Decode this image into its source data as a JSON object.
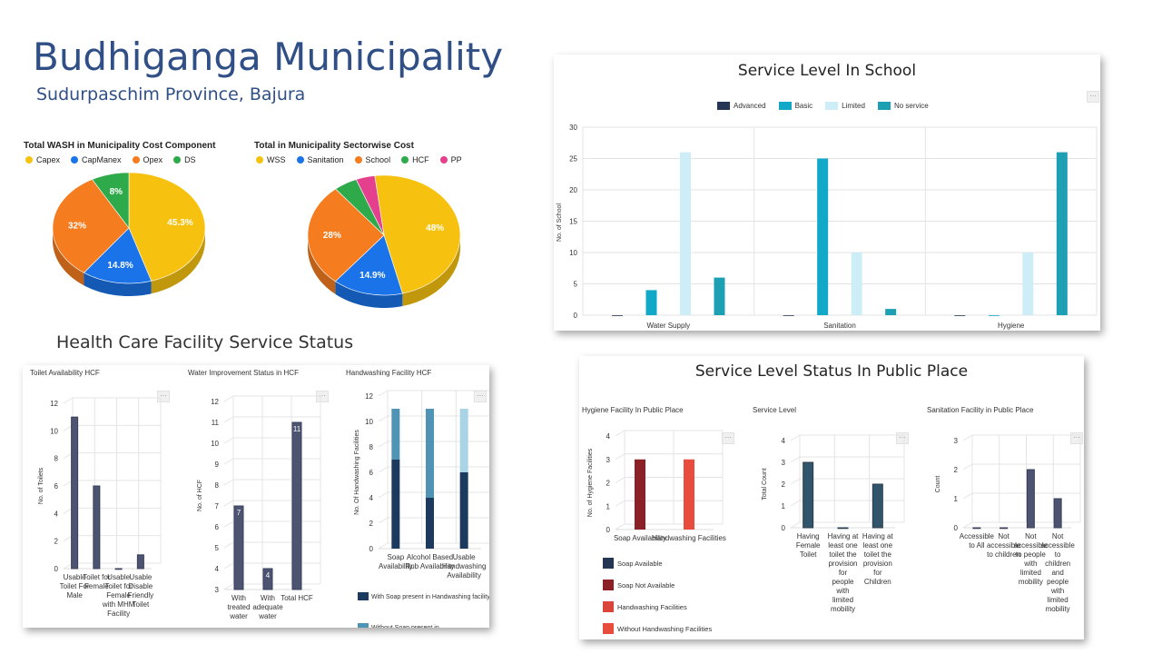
{
  "header": {
    "title": "Budhiganga Municipality",
    "subtitle": "Sudurpaschim Province, Bajura"
  },
  "sections": {
    "health_care": "Health Care Facility Service Status"
  },
  "colors": {
    "title": "#2f4f86",
    "pie_yellow": "#f7c20f",
    "pie_blue": "#1a73e8",
    "pie_orange": "#f57c1f",
    "pie_green": "#2eaa4a",
    "pie_pink": "#e5408d",
    "school_advanced": "#253554",
    "school_basic": "#12a9c9",
    "school_limited": "#cdeef6",
    "school_noservice": "#1da0b4",
    "hcf_bar": "#4c5472"
  },
  "chart_data": [
    {
      "id": "pie1",
      "type": "pie",
      "title": "Total WASH in Municipality Cost Component",
      "legend": [
        "Capex",
        "CapManex",
        "Opex",
        "DS"
      ],
      "values": [
        45.3,
        14.8,
        32,
        8
      ],
      "labels": [
        "45.3%",
        "14.8%",
        "32%",
        "8%"
      ],
      "colors": [
        "#f7c20f",
        "#1a73e8",
        "#f57c1f",
        "#2eaa4a"
      ]
    },
    {
      "id": "pie2",
      "type": "pie",
      "title": "Total in Municipality Sectorwise Cost",
      "legend": [
        "WSS",
        "Sanitation",
        "School",
        "HCF",
        "PP"
      ],
      "values": [
        48,
        14.9,
        28,
        5,
        4
      ],
      "labels": [
        "48%",
        "14.9%",
        "28%",
        "",
        ""
      ],
      "colors": [
        "#f7c20f",
        "#1a73e8",
        "#f57c1f",
        "#2eaa4a",
        "#e5408d"
      ]
    },
    {
      "id": "school",
      "type": "bar",
      "title": "Service Level In School",
      "categories": [
        "Water Supply",
        "Sanitation",
        "Hygiene"
      ],
      "series": [
        {
          "name": "Advanced",
          "values": [
            0,
            0,
            0
          ],
          "color": "#253554"
        },
        {
          "name": "Basic",
          "values": [
            4,
            25,
            0
          ],
          "color": "#12a9c9"
        },
        {
          "name": "Limited",
          "values": [
            26,
            10,
            10
          ],
          "color": "#cdeef6"
        },
        {
          "name": "No service",
          "values": [
            6,
            1,
            26
          ],
          "color": "#1da0b4"
        }
      ],
      "ylabel": "No. of School",
      "yticks": [
        "0",
        "5",
        "10",
        "15",
        "20",
        "25",
        "30"
      ],
      "ylim": [
        0,
        30
      ]
    },
    {
      "id": "toilet_hcf",
      "type": "bar",
      "title": "Toilet Availability HCF",
      "categories": [
        [
          "Usable",
          "Toilet For",
          "Male"
        ],
        [
          "Toilet for",
          "Female"
        ],
        [
          "Usable",
          "Toilet for",
          "Female",
          "with MHM",
          "Facility"
        ],
        [
          "Usable",
          "Disable",
          "Friendly",
          "Toilet"
        ]
      ],
      "values": [
        11,
        6,
        0,
        1
      ],
      "ylabel": "No. of Toilets",
      "yticks": [
        "0",
        "2",
        "4",
        "6",
        "8",
        "10",
        "12"
      ],
      "ylim": [
        0,
        12
      ]
    },
    {
      "id": "water_hcf",
      "type": "bar",
      "title": "Water Improvement Status in HCF",
      "categories": [
        [
          "With",
          "treated",
          "water"
        ],
        [
          "With",
          "adequate",
          "water"
        ],
        [
          "Total HCF"
        ]
      ],
      "values": [
        7,
        4,
        11
      ],
      "data_labels": [
        "7",
        "4",
        "11"
      ],
      "ylabel": "No. of HCF",
      "yticks": [
        "3",
        "4",
        "5",
        "6",
        "7",
        "8",
        "9",
        "10",
        "11",
        "12"
      ],
      "ylim": [
        3,
        12
      ]
    },
    {
      "id": "handwash_hcf",
      "type": "bar",
      "title": "Handwashing Facility HCF",
      "categories": [
        [
          "Soap",
          "Availability"
        ],
        [
          "Alcohol Based",
          "Rub Availability"
        ],
        [
          "Usable",
          "Handwashing",
          "Availability"
        ]
      ],
      "series": [
        {
          "name": "With Soap present in Handwashing facility",
          "values": [
            7,
            4,
            6
          ],
          "color": "#1c3a5e"
        },
        {
          "name": "Without Soap present in",
          "values": [
            4,
            7,
            0
          ],
          "color": "#4f93b5"
        },
        {
          "name": "",
          "values": [
            0,
            0,
            5
          ],
          "color": "#a8d4e6"
        }
      ],
      "ylabel": "No. Of Handwashing Facilities",
      "yticks": [
        "0",
        "2",
        "4",
        "6",
        "8",
        "10",
        "12"
      ],
      "ylim": [
        0,
        12
      ]
    },
    {
      "id": "hygiene_pp",
      "type": "bar",
      "title": "Hygiene Facility In Public Place",
      "categories": [
        [
          "Soap Availability"
        ],
        [
          "Handwashing Facilities"
        ]
      ],
      "values": [
        3,
        3
      ],
      "colors": [
        "#8b2027",
        "#e84c3d"
      ],
      "legend": [
        "Soap Available",
        "Soap Not Available",
        "Handwashing Facilities",
        "Without Handwashing Facilities"
      ],
      "legend_colors": [
        "#253554",
        "#8b2027",
        "#d9453a",
        "#e84c3d"
      ],
      "ylabel": "No. of Hygiene Facilities",
      "yticks": [
        "0",
        "1",
        "2",
        "3",
        "4"
      ],
      "ylim": [
        0,
        4
      ]
    },
    {
      "id": "service_pp",
      "type": "bar",
      "title": "Service Level",
      "categories": [
        [
          "Having",
          "Female",
          "Toilet"
        ],
        [
          "Having at",
          "least one",
          "toilet the",
          "provision",
          "for",
          "people",
          "with",
          "limited",
          "mobility"
        ],
        [
          "Having at",
          "least one",
          "toilet the",
          "provision",
          "for",
          "Children"
        ]
      ],
      "values": [
        3,
        0,
        2
      ],
      "ylabel": "Total Count",
      "yticks": [
        "0",
        "1",
        "2",
        "3",
        "4"
      ],
      "ylim": [
        0,
        4
      ]
    },
    {
      "id": "sanitation_pp",
      "type": "bar",
      "title": "Sanitation Facility in Public Place",
      "categories": [
        [
          "Accessible",
          "to All"
        ],
        [
          "Not",
          "accessible",
          "to children"
        ],
        [
          "Not",
          "accessible",
          "to people",
          "with",
          "limited",
          "mobility"
        ],
        [
          "Not",
          "accessible",
          "to",
          "children",
          "and",
          "people",
          "with",
          "limited",
          "mobility"
        ]
      ],
      "values": [
        0,
        0,
        2,
        1
      ],
      "ylabel": "Count",
      "yticks": [
        "0",
        "1",
        "2",
        "3"
      ],
      "ylim": [
        0,
        3
      ]
    }
  ],
  "panels": {
    "pp_title": "Service Level Status In Public Place"
  }
}
